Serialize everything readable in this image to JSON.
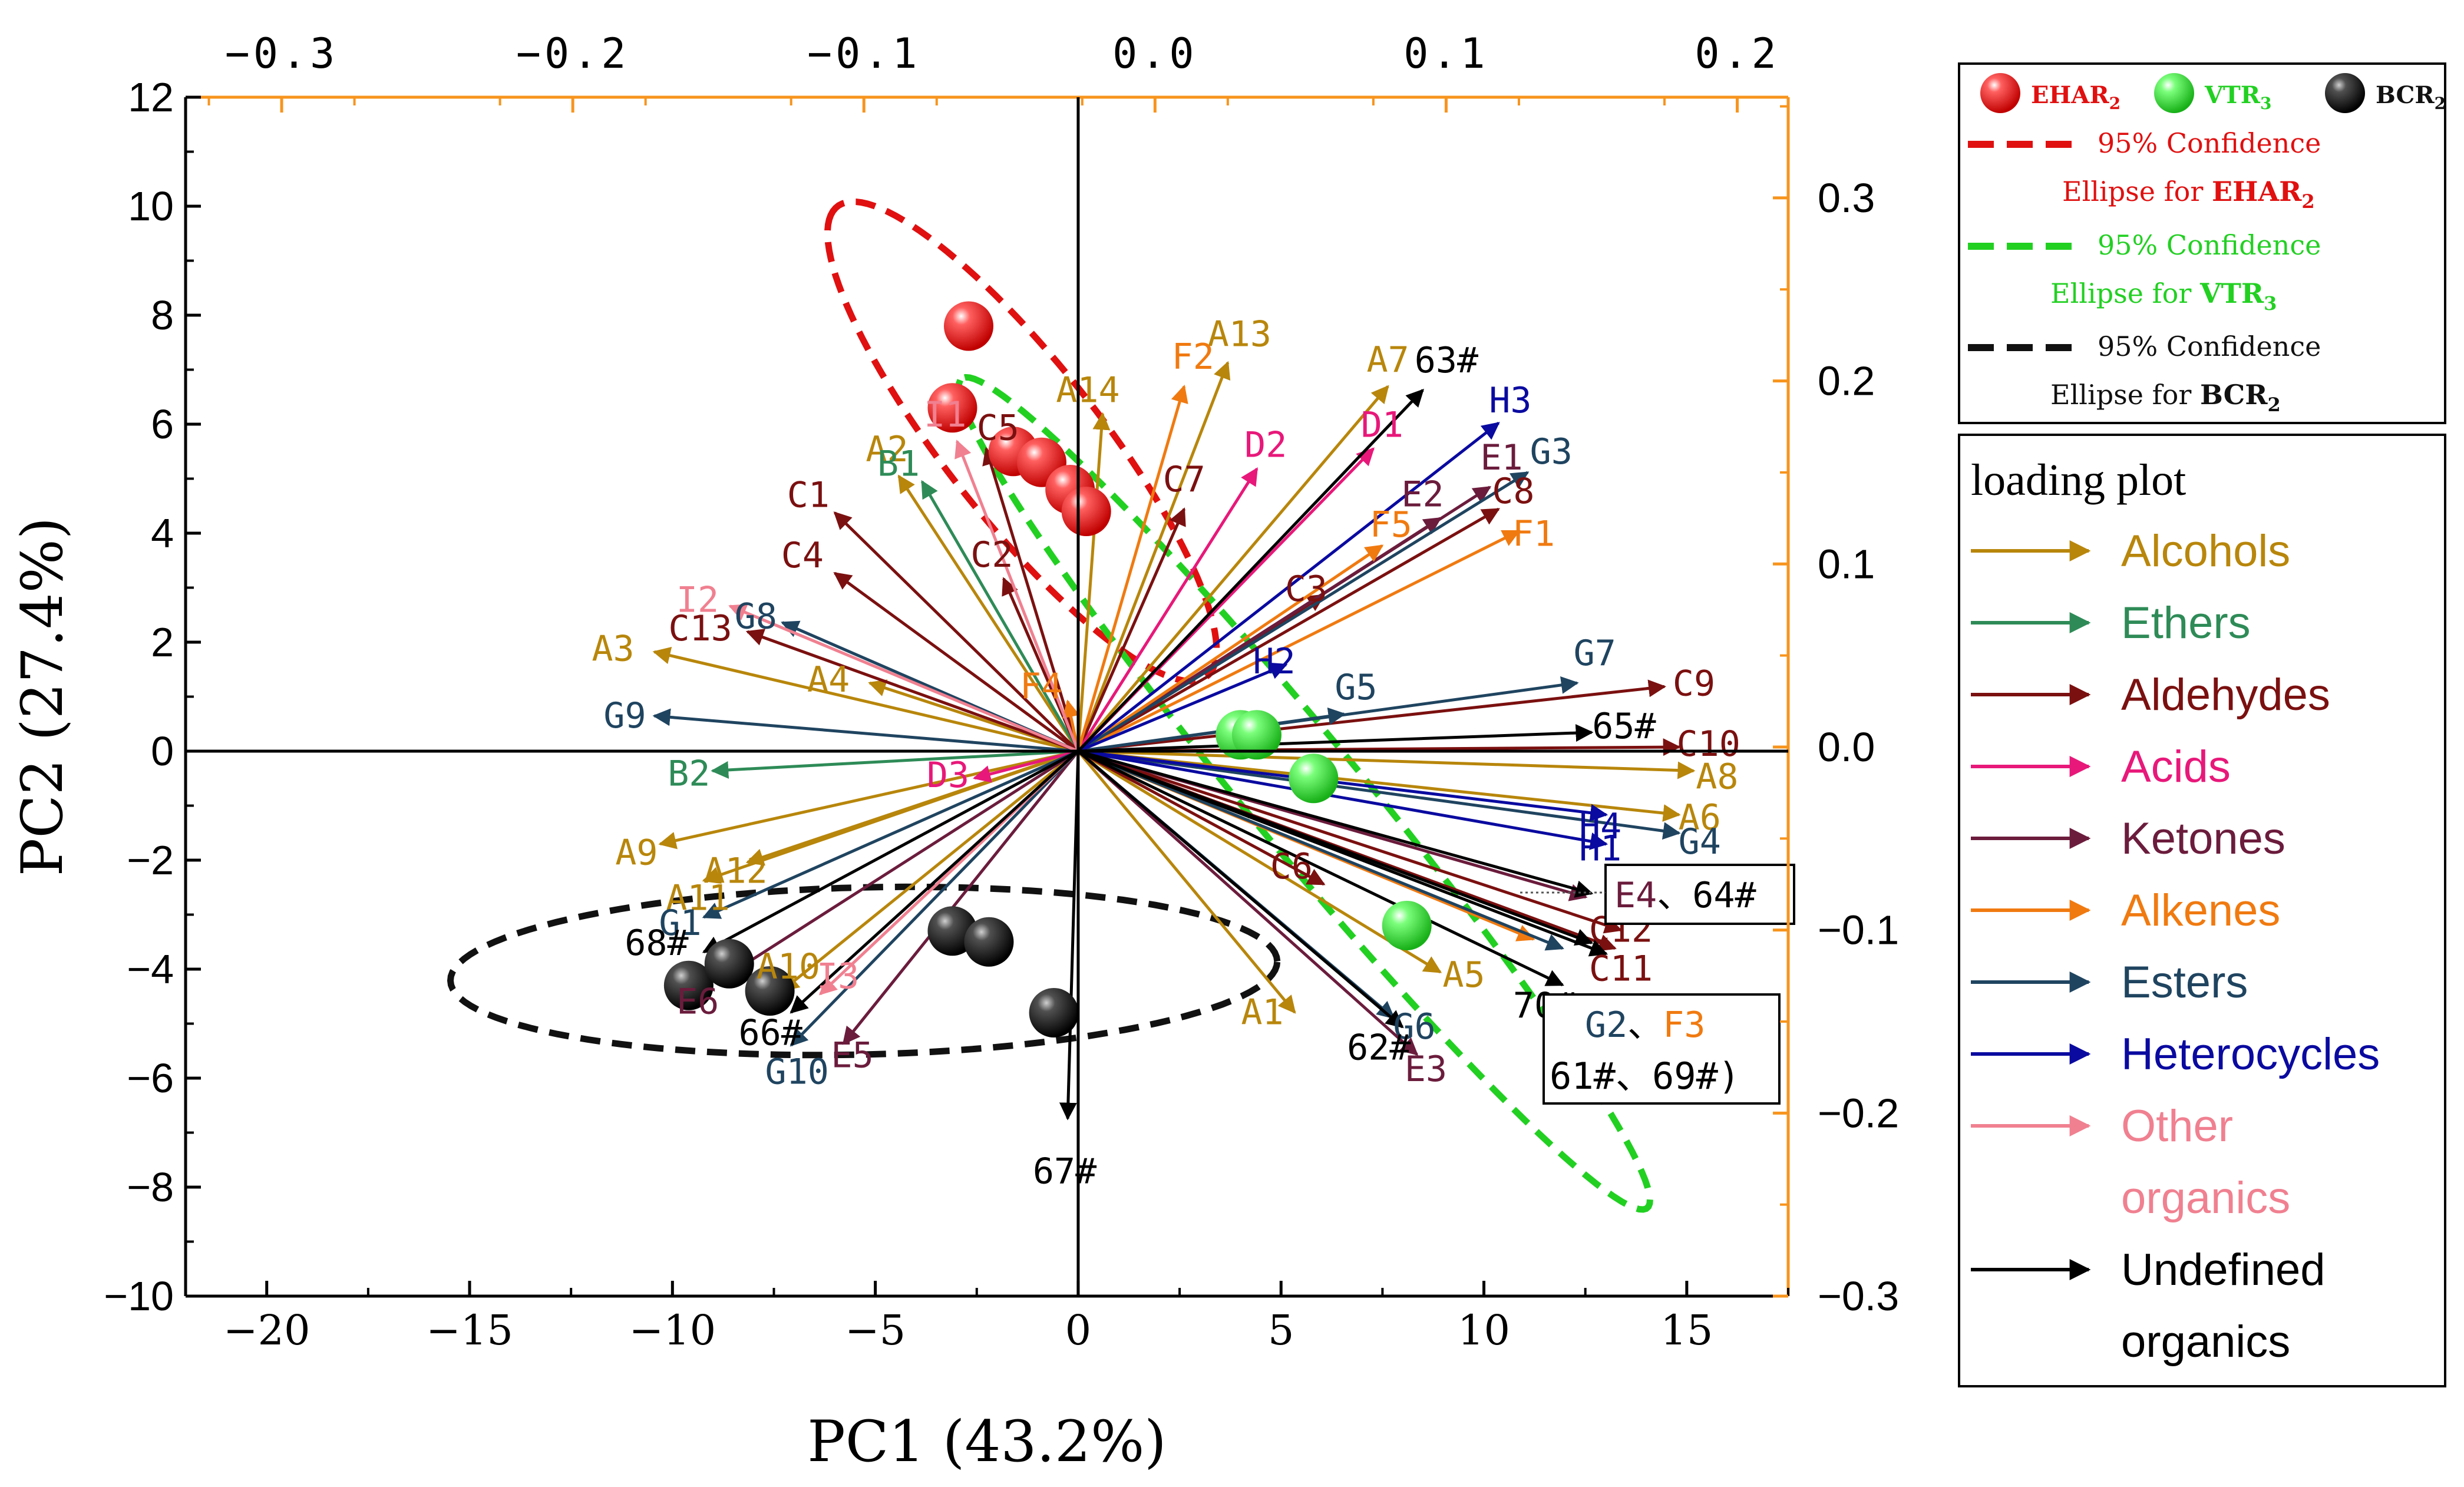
{
  "chart_data": {
    "type": "scatter",
    "title": "",
    "xlabel": "PC1 (43.2%)",
    "ylabel": "PC2 (27.4%)",
    "xlim": [
      -22,
      17.5
    ],
    "ylim": [
      -10,
      12
    ],
    "xticks": [
      -20,
      -15,
      -10,
      -5,
      0,
      5,
      10,
      15
    ],
    "yticks": [
      -10,
      -8,
      -6,
      -4,
      -2,
      0,
      2,
      4,
      6,
      8,
      10,
      12
    ],
    "top_axis": {
      "lim": [
        -0.333,
        0.2175
      ],
      "ticks": [
        -0.3,
        -0.2,
        -0.1,
        0.0,
        0.1,
        0.2
      ],
      "labels": [
        "−0.3",
        "−0.2",
        "−0.1",
        "0.0",
        "0.1",
        "0.2"
      ]
    },
    "right_axis": {
      "lim": [
        -0.3,
        0.355
      ],
      "ticks": [
        -0.3,
        -0.2,
        -0.1,
        0.0,
        0.1,
        0.2,
        0.3
      ],
      "labels": [
        "−0.3",
        "−0.2",
        "−0.1",
        "0.0",
        "0.1",
        "0.2",
        "0.3"
      ]
    },
    "categories": {
      "Alcohols": "#B8860B",
      "Ethers": "#2E8B57",
      "Aldehydes": "#7B1010",
      "Acids": "#E8187A",
      "Ketones": "#6B1C3C",
      "Alkenes": "#F07A10",
      "Esters": "#1F4460",
      "Heterocycles": "#0A0AA0",
      "Other organics": "#F08090",
      "Undefined organics": "#000000"
    },
    "loadings": [
      {
        "label": "A1",
        "cat": "Alcohols",
        "x": 0.048,
        "y": -0.145
      },
      {
        "label": "A2",
        "cat": "Alcohols",
        "x": -0.088,
        "y": 0.148
      },
      {
        "label": "A3",
        "cat": "Alcohols",
        "x": -0.172,
        "y": 0.052
      },
      {
        "label": "A4",
        "cat": "Alcohols",
        "x": -0.098,
        "y": 0.035
      },
      {
        "label": "A5",
        "cat": "Alcohols",
        "x": 0.098,
        "y": -0.123
      },
      {
        "label": "A6",
        "cat": "Alcohols",
        "x": 0.18,
        "y": -0.037
      },
      {
        "label": "A7",
        "cat": "Alcohols",
        "x": 0.08,
        "y": 0.197
      },
      {
        "label": "A8",
        "cat": "Alcohols",
        "x": 0.185,
        "y": -0.013
      },
      {
        "label": "A9",
        "cat": "Alcohols",
        "x": -0.17,
        "y": -0.053
      },
      {
        "label": "A10",
        "cat": "Alcohols",
        "x": -0.128,
        "y": -0.133
      },
      {
        "label": "A11",
        "cat": "Alcohols",
        "x": -0.155,
        "y": -0.073
      },
      {
        "label": "A12",
        "cat": "Alcohols",
        "x": -0.14,
        "y": -0.063
      },
      {
        "label": "A13",
        "cat": "Alcohols",
        "x": 0.025,
        "y": 0.21
      },
      {
        "label": "A14",
        "cat": "Alcohols",
        "x": -0.018,
        "y": 0.182
      },
      {
        "label": "B1",
        "cat": "Ethers",
        "x": -0.08,
        "y": 0.145
      },
      {
        "label": "B2",
        "cat": "Ethers",
        "x": -0.152,
        "y": -0.013
      },
      {
        "label": "C1",
        "cat": "Aldehydes",
        "x": -0.11,
        "y": 0.128
      },
      {
        "label": "C2",
        "cat": "Aldehydes",
        "x": -0.052,
        "y": 0.092
      },
      {
        "label": "C3",
        "cat": "Aldehydes",
        "x": 0.058,
        "y": 0.083
      },
      {
        "label": "C4",
        "cat": "Aldehydes",
        "x": -0.11,
        "y": 0.095
      },
      {
        "label": "C5",
        "cat": "Aldehydes",
        "x": -0.058,
        "y": 0.163
      },
      {
        "label": "C6",
        "cat": "Aldehydes",
        "x": 0.058,
        "y": -0.075
      },
      {
        "label": "C7",
        "cat": "Aldehydes",
        "x": 0.01,
        "y": 0.13
      },
      {
        "label": "C8",
        "cat": "Aldehydes",
        "x": 0.118,
        "y": 0.13
      },
      {
        "label": "C9",
        "cat": "Aldehydes",
        "x": 0.175,
        "y": 0.033
      },
      {
        "label": "C10",
        "cat": "Aldehydes",
        "x": 0.18,
        "y": 0.0
      },
      {
        "label": "C11",
        "cat": "Aldehydes",
        "x": 0.158,
        "y": -0.11
      },
      {
        "label": "C12",
        "cat": "Aldehydes",
        "x": 0.16,
        "y": -0.1
      },
      {
        "label": "C13",
        "cat": "Aldehydes",
        "x": -0.14,
        "y": 0.063
      },
      {
        "label": "D1",
        "cat": "Acids",
        "x": 0.075,
        "y": 0.163
      },
      {
        "label": "D2",
        "cat": "Acids",
        "x": 0.035,
        "y": 0.152
      },
      {
        "label": "D3",
        "cat": "Acids",
        "x": -0.062,
        "y": -0.017
      },
      {
        "label": "E1",
        "cat": "Ketones",
        "x": 0.115,
        "y": 0.142
      },
      {
        "label": "E2",
        "cat": "Ketones",
        "x": 0.098,
        "y": 0.125
      },
      {
        "label": "E3",
        "cat": "Ketones",
        "x": 0.09,
        "y": -0.168
      },
      {
        "label": "E4",
        "cat": "Ketones",
        "x": 0.148,
        "y": -0.082
      },
      {
        "label": "E5",
        "cat": "Ketones",
        "x": -0.107,
        "y": -0.162
      },
      {
        "label": "E6",
        "cat": "Ketones",
        "x": -0.15,
        "y": -0.128
      },
      {
        "label": "F1",
        "cat": "Alkenes",
        "x": 0.125,
        "y": 0.118
      },
      {
        "label": "F2",
        "cat": "Alkenes",
        "x": 0.01,
        "y": 0.197
      },
      {
        "label": "F3",
        "cat": "Alkenes",
        "x": 0.13,
        "y": -0.105
      },
      {
        "label": "F4",
        "cat": "Alkenes",
        "x": -0.03,
        "y": 0.025
      },
      {
        "label": "F5",
        "cat": "Alkenes",
        "x": 0.078,
        "y": 0.11
      },
      {
        "label": "G1",
        "cat": "Esters",
        "x": -0.155,
        "y": -0.093
      },
      {
        "label": "G2",
        "cat": "Esters",
        "x": 0.14,
        "y": -0.11
      },
      {
        "label": "G3",
        "cat": "Esters",
        "x": 0.128,
        "y": 0.15
      },
      {
        "label": "G4",
        "cat": "Esters",
        "x": 0.18,
        "y": -0.047
      },
      {
        "label": "G5",
        "cat": "Esters",
        "x": 0.065,
        "y": 0.018
      },
      {
        "label": "G6",
        "cat": "Esters",
        "x": 0.082,
        "y": -0.148
      },
      {
        "label": "G7",
        "cat": "Esters",
        "x": 0.145,
        "y": 0.035
      },
      {
        "label": "G8",
        "cat": "Esters",
        "x": -0.128,
        "y": 0.068
      },
      {
        "label": "G9",
        "cat": "Esters",
        "x": -0.172,
        "y": 0.017
      },
      {
        "label": "G10",
        "cat": "Esters",
        "x": -0.125,
        "y": -0.163
      },
      {
        "label": "H1",
        "cat": "Heterocycles",
        "x": 0.155,
        "y": -0.053
      },
      {
        "label": "H2",
        "cat": "Heterocycles",
        "x": 0.045,
        "y": 0.045
      },
      {
        "label": "H3",
        "cat": "Heterocycles",
        "x": 0.118,
        "y": 0.177
      },
      {
        "label": "H4",
        "cat": "Heterocycles",
        "x": 0.155,
        "y": -0.037
      },
      {
        "label": "I1",
        "cat": "Other organics",
        "x": -0.068,
        "y": 0.167
      },
      {
        "label": "I2",
        "cat": "Other organics",
        "x": -0.146,
        "y": 0.077
      },
      {
        "label": "I3",
        "cat": "Other organics",
        "x": -0.115,
        "y": -0.135
      },
      {
        "label": "61#",
        "cat": "Undefined organics",
        "x": 0.15,
        "y": -0.107
      },
      {
        "label": "62#",
        "cat": "Undefined organics",
        "x": 0.085,
        "y": -0.153
      },
      {
        "label": "63#",
        "cat": "Undefined organics",
        "x": 0.092,
        "y": 0.195
      },
      {
        "label": "64#",
        "cat": "Undefined organics",
        "x": 0.15,
        "y": -0.08
      },
      {
        "label": "65#",
        "cat": "Undefined organics",
        "x": 0.15,
        "y": 0.008
      },
      {
        "label": "66#",
        "cat": "Undefined organics",
        "x": -0.125,
        "y": -0.145
      },
      {
        "label": "67#",
        "cat": "Undefined organics",
        "x": -0.03,
        "y": -0.203
      },
      {
        "label": "68#",
        "cat": "Undefined organics",
        "x": -0.155,
        "y": -0.112
      },
      {
        "label": "69#",
        "cat": "Undefined organics",
        "x": 0.155,
        "y": -0.113
      },
      {
        "label": "70#",
        "cat": "Undefined organics",
        "x": 0.14,
        "y": -0.13
      }
    ],
    "score_groups": [
      {
        "name": "EHAR",
        "sub": "2",
        "color": "#E01010",
        "points": [
          [
            -2.7,
            7.8
          ],
          [
            -3.1,
            6.3
          ],
          [
            -1.6,
            5.5
          ],
          [
            -0.9,
            5.3
          ],
          [
            -0.2,
            4.8
          ],
          [
            0.2,
            4.4
          ]
        ]
      },
      {
        "name": "VTR",
        "sub": "3",
        "color": "#22D022",
        "points": [
          [
            4.0,
            0.3
          ],
          [
            4.4,
            0.3
          ],
          [
            5.8,
            -0.5
          ],
          [
            8.1,
            -3.2
          ]
        ]
      },
      {
        "name": "BCR",
        "sub": "2",
        "color": "#111111",
        "points": [
          [
            -3.1,
            -3.3
          ],
          [
            -2.2,
            -3.5
          ],
          [
            -0.6,
            -4.8
          ],
          [
            -9.6,
            -4.3
          ],
          [
            -8.6,
            -3.9
          ],
          [
            -7.6,
            -4.4
          ]
        ]
      }
    ],
    "legend_top": {
      "ellipse_lines": [
        {
          "line1": "95% Confidence",
          "line2_pre": "Ellipse for ",
          "name": "EHAR",
          "sub": "2",
          "color": "#E01010",
          "text_color": "#E01010"
        },
        {
          "line1": "95% Confidence",
          "line2_pre": "Ellipse for ",
          "name": "VTR",
          "sub": "3",
          "color": "#22D022",
          "text_color": "#22D022"
        },
        {
          "line1": "95% Confidence",
          "line2_pre": "Ellipse for ",
          "name": "BCR",
          "sub": "2",
          "color": "#111111",
          "text_color": "#111111"
        }
      ]
    },
    "legend_loading": {
      "title": "loading plot",
      "items": [
        {
          "label": "Alcohols",
          "cat": "Alcohols"
        },
        {
          "label": "Ethers",
          "cat": "Ethers"
        },
        {
          "label": "Aldehydes",
          "cat": "Aldehydes"
        },
        {
          "label": "Acids",
          "cat": "Acids"
        },
        {
          "label": "Ketones",
          "cat": "Ketones"
        },
        {
          "label": "Alkenes",
          "cat": "Alkenes"
        },
        {
          "label": "Esters",
          "cat": "Esters"
        },
        {
          "label": "Heterocycles",
          "cat": "Heterocycles"
        },
        {
          "label": "Other\norganics",
          "cat": "Other organics"
        },
        {
          "label": "Undefined\norganics",
          "cat": "Undefined organics"
        }
      ]
    },
    "callouts": [
      {
        "parts": [
          {
            "t": "E4",
            "cat": "Ketones"
          },
          {
            "t": "、64#",
            "cat": "Undefined organics"
          }
        ]
      },
      {
        "parts": [
          {
            "t": "G2",
            "cat": "Esters"
          },
          {
            "t": "、",
            "cat": "Undefined organics"
          },
          {
            "t": "F3",
            "cat": "Alkenes"
          }
        ],
        "line2": "61#、69#)"
      }
    ]
  }
}
